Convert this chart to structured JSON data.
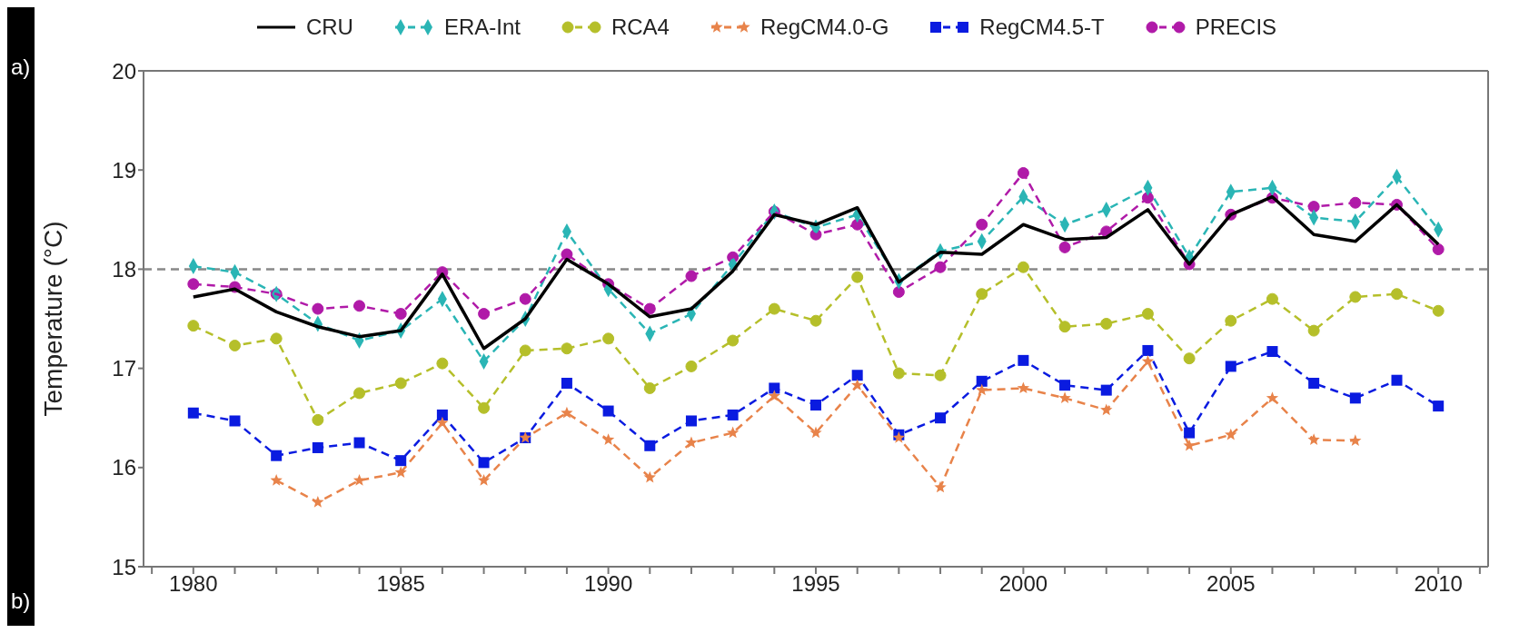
{
  "chart_data": {
    "type": "line",
    "annotations": [
      "a)",
      "b)"
    ],
    "ylabel": "Temperature (°C)",
    "x": [
      1980,
      1981,
      1982,
      1983,
      1984,
      1985,
      1986,
      1987,
      1988,
      1989,
      1990,
      1991,
      1992,
      1993,
      1994,
      1995,
      1996,
      1997,
      1998,
      1999,
      2000,
      2001,
      2002,
      2003,
      2004,
      2005,
      2006,
      2007,
      2008,
      2009,
      2010
    ],
    "series": [
      {
        "name": "CRU",
        "color": "#000000",
        "marker": "none",
        "line_style": "solid",
        "values": [
          17.72,
          17.8,
          17.57,
          17.42,
          17.32,
          17.38,
          17.95,
          17.2,
          17.5,
          18.1,
          17.85,
          17.52,
          17.6,
          17.98,
          18.55,
          18.45,
          18.62,
          17.87,
          18.17,
          18.15,
          18.45,
          18.3,
          18.32,
          18.6,
          18.05,
          18.55,
          18.73,
          18.35,
          18.28,
          18.65,
          18.25
        ]
      },
      {
        "name": "ERA-Int",
        "color": "#2ab5b5",
        "marker": "diamond",
        "line_style": "dashed",
        "values": [
          18.03,
          17.97,
          17.75,
          17.45,
          17.28,
          17.38,
          17.7,
          17.07,
          17.5,
          18.38,
          17.8,
          17.35,
          17.55,
          18.05,
          18.58,
          18.42,
          18.55,
          17.88,
          18.18,
          18.28,
          18.73,
          18.45,
          18.6,
          18.82,
          18.12,
          18.78,
          18.82,
          18.52,
          18.48,
          18.93,
          18.4
        ]
      },
      {
        "name": "RCA4",
        "color": "#b5bf2a",
        "marker": "circle",
        "line_style": "dashed",
        "values": [
          17.43,
          17.23,
          17.3,
          16.48,
          16.75,
          16.85,
          17.05,
          16.6,
          17.18,
          17.2,
          17.3,
          16.8,
          17.02,
          17.28,
          17.6,
          17.48,
          17.92,
          16.95,
          16.93,
          17.75,
          18.02,
          17.42,
          17.45,
          17.55,
          17.1,
          17.48,
          17.7,
          17.38,
          17.72,
          17.75,
          17.58
        ]
      },
      {
        "name": "RegCM4.0-G",
        "color": "#e8834a",
        "marker": "star",
        "line_style": "dashed",
        "values": [
          null,
          null,
          15.87,
          15.65,
          15.87,
          15.95,
          16.45,
          15.87,
          16.3,
          16.55,
          16.28,
          15.9,
          16.25,
          16.35,
          16.72,
          16.35,
          16.83,
          16.3,
          15.8,
          16.78,
          16.8,
          16.7,
          16.58,
          17.07,
          16.22,
          16.33,
          16.7,
          16.28,
          16.27,
          null,
          null
        ]
      },
      {
        "name": "RegCM4.5-T",
        "color": "#0a1be0",
        "marker": "square",
        "line_style": "dashed",
        "values": [
          16.55,
          16.47,
          16.12,
          16.2,
          16.25,
          16.07,
          16.53,
          16.05,
          16.3,
          16.85,
          16.57,
          16.22,
          16.47,
          16.53,
          16.8,
          16.63,
          16.93,
          16.33,
          16.5,
          16.87,
          17.08,
          16.83,
          16.78,
          17.18,
          16.35,
          17.02,
          17.17,
          16.85,
          16.7,
          16.88,
          16.62
        ]
      },
      {
        "name": "PRECIS",
        "color": "#b01aa8",
        "marker": "circle",
        "line_style": "dashed",
        "values": [
          17.85,
          17.82,
          17.75,
          17.6,
          17.63,
          17.55,
          17.97,
          17.55,
          17.7,
          18.15,
          17.85,
          17.6,
          17.93,
          18.12,
          18.58,
          18.35,
          18.45,
          17.77,
          18.02,
          18.45,
          18.97,
          18.22,
          18.38,
          18.72,
          18.05,
          18.55,
          18.72,
          18.63,
          18.67,
          18.65,
          18.2
        ]
      }
    ],
    "xlim": [
      1978.8,
      2011.2
    ],
    "xticks": [
      {
        "value": 1979,
        "label": null
      },
      1980,
      {
        "value": 1981,
        "label": null
      },
      {
        "value": 1982,
        "label": null
      },
      {
        "value": 1983,
        "label": null
      },
      {
        "value": 1984,
        "label": null
      },
      1985,
      {
        "value": 1986,
        "label": null
      },
      {
        "value": 1987,
        "label": null
      },
      {
        "value": 1988,
        "label": null
      },
      {
        "value": 1989,
        "label": null
      },
      1990,
      {
        "value": 1991,
        "label": null
      },
      {
        "value": 1992,
        "label": null
      },
      {
        "value": 1993,
        "label": null
      },
      {
        "value": 1994,
        "label": null
      },
      1995,
      {
        "value": 1996,
        "label": null
      },
      {
        "value": 1997,
        "label": null
      },
      {
        "value": 1998,
        "label": null
      },
      {
        "value": 1999,
        "label": null
      },
      2000,
      {
        "value": 2001,
        "label": null
      },
      {
        "value": 2002,
        "label": null
      },
      {
        "value": 2003,
        "label": null
      },
      {
        "value": 2004,
        "label": null
      },
      2005,
      {
        "value": 2006,
        "label": null
      },
      {
        "value": 2007,
        "label": null
      },
      {
        "value": 2008,
        "label": null
      },
      {
        "value": 2009,
        "label": null
      },
      2010,
      {
        "value": 2011,
        "label": null
      }
    ],
    "ylim": [
      15,
      20
    ],
    "yticks": [
      15,
      16,
      17,
      18,
      19,
      20
    ],
    "ref_lines": [
      {
        "axis": "y",
        "value": 18,
        "color": "#888888",
        "line_style": "dashed"
      }
    ],
    "grid": false,
    "legend": "top"
  }
}
